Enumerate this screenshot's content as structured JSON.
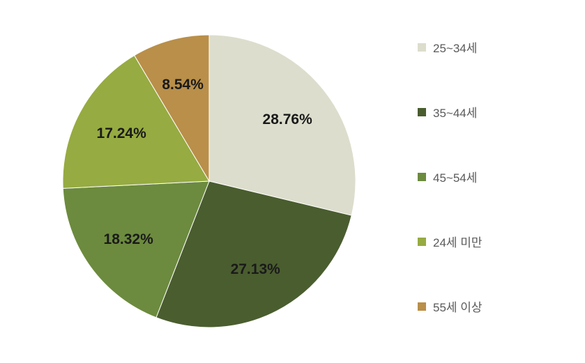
{
  "pie_chart": {
    "type": "pie",
    "background_color": "#ffffff",
    "label_fontsize": 21,
    "label_fontweight": "bold",
    "label_color": "#1a1a1a",
    "stroke_color": "#ffffff",
    "stroke_width": 1,
    "slices": [
      {
        "label": "25~34세",
        "value": 28.76,
        "display": "28.76%",
        "color": "#dcddcc"
      },
      {
        "label": "35~44세",
        "value": 27.13,
        "display": "27.13%",
        "color": "#4a5d2f"
      },
      {
        "label": "45~54세",
        "value": 18.32,
        "display": "18.32%",
        "color": "#6c8b3e"
      },
      {
        "label": "24세 미만",
        "value": 17.24,
        "display": "17.24%",
        "color": "#96ab41"
      },
      {
        "label": "55세 이상",
        "value": 8.54,
        "display": "8.54%",
        "color": "#b98f49"
      }
    ],
    "legend": {
      "fontsize": 17,
      "color": "#5a5a5a",
      "swatch_size": 12
    }
  }
}
